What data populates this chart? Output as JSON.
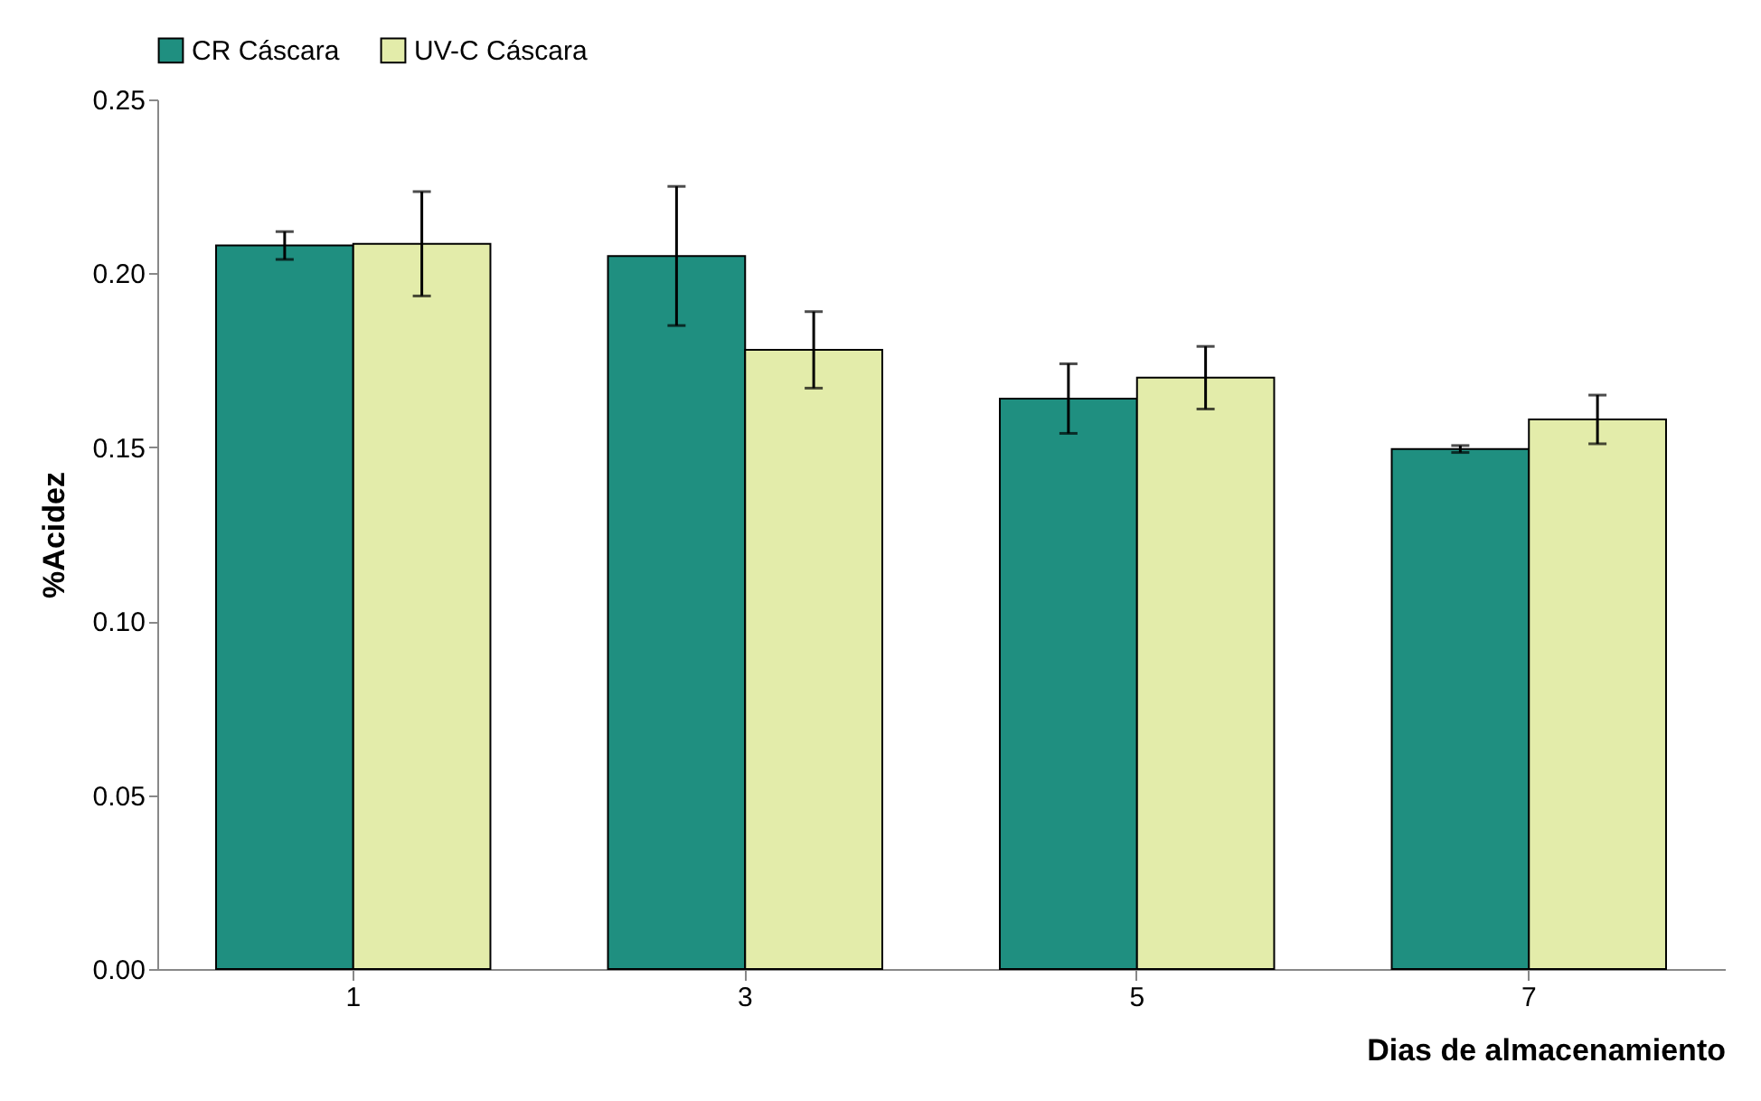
{
  "chart_data": {
    "type": "bar",
    "xlabel": "Dias de almacenamiento",
    "ylabel": "%Acidez",
    "categories": [
      "1",
      "3",
      "5",
      "7"
    ],
    "series": [
      {
        "name": "CR Cáscara",
        "color": "#1f8f80",
        "values": [
          0.208,
          0.205,
          0.164,
          0.1495
        ],
        "errors": [
          0.004,
          0.02,
          0.01,
          0.001
        ]
      },
      {
        "name": "UV-C Cáscara",
        "color": "#e3ecaa",
        "values": [
          0.2085,
          0.178,
          0.17,
          0.158
        ],
        "errors": [
          0.015,
          0.011,
          0.009,
          0.007
        ]
      }
    ],
    "ylim": [
      0,
      0.25
    ],
    "yticks": [
      {
        "value": 0,
        "label": "0.00"
      },
      {
        "value": 0.05,
        "label": "0.05"
      },
      {
        "value": 0.1,
        "label": "0.10"
      },
      {
        "value": 0.15,
        "label": "0.15"
      },
      {
        "value": 0.2,
        "label": "0.20"
      },
      {
        "value": 0.25,
        "label": "0.25"
      }
    ],
    "grid": false,
    "legend": "top"
  }
}
